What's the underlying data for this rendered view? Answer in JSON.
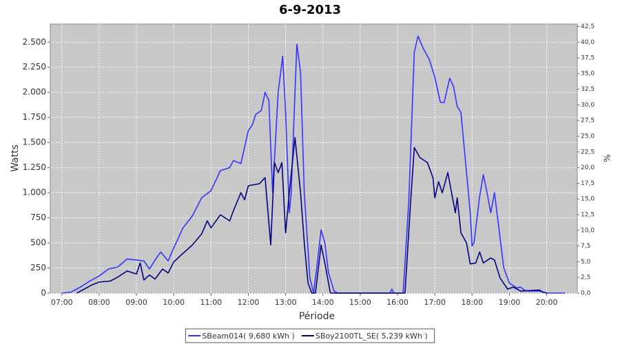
{
  "chart_data": {
    "type": "line",
    "title": "6-9-2013",
    "x_label": "Période",
    "y_label": "Watts",
    "y2_label": "%",
    "xlim": [
      6.69,
      20.82
    ],
    "ylim": [
      0,
      2680
    ],
    "y2lim": [
      0,
      42.88
    ],
    "grid": true,
    "legend": "bottom",
    "xticks": [
      {
        "value": 7,
        "label": "07:00"
      },
      {
        "value": 8,
        "label": "08:00"
      },
      {
        "value": 9,
        "label": "09:00"
      },
      {
        "value": 10,
        "label": "10:00"
      },
      {
        "value": 11,
        "label": "11:00"
      },
      {
        "value": 12,
        "label": "12:00"
      },
      {
        "value": 13,
        "label": "13:00"
      },
      {
        "value": 14,
        "label": "14:00"
      },
      {
        "value": 15,
        "label": "15:00"
      },
      {
        "value": 16,
        "label": "16:00"
      },
      {
        "value": 17,
        "label": "17:00"
      },
      {
        "value": 18,
        "label": "18:00"
      },
      {
        "value": 19,
        "label": "19:00"
      },
      {
        "value": 20,
        "label": "20:00"
      }
    ],
    "yticks": [
      0,
      250,
      500,
      750,
      {
        "value": 1000,
        "label": "1.000"
      },
      {
        "value": 1250,
        "label": "1.250"
      },
      {
        "value": 1500,
        "label": "1.500"
      },
      {
        "value": 1750,
        "label": "1.750"
      },
      {
        "value": 2000,
        "label": "2.000"
      },
      {
        "value": 2250,
        "label": "2.250"
      },
      {
        "value": 2500,
        "label": "2.500"
      }
    ],
    "y2ticks": [
      {
        "value": 0,
        "label": "0,0"
      },
      {
        "value": 2.5,
        "label": "2,5"
      },
      {
        "value": 5,
        "label": "5,0"
      },
      {
        "value": 7.5,
        "label": "7,5"
      },
      {
        "value": 10,
        "label": "10,0"
      },
      {
        "value": 12.5,
        "label": "12,5"
      },
      {
        "value": 15,
        "label": "15,0"
      },
      {
        "value": 17.5,
        "label": "17,5"
      },
      {
        "value": 20,
        "label": "20,0"
      },
      {
        "value": 22.5,
        "label": "22,5"
      },
      {
        "value": 25,
        "label": "25,0"
      },
      {
        "value": 27.5,
        "label": "27,5"
      },
      {
        "value": 30,
        "label": "30,0"
      },
      {
        "value": 32.5,
        "label": "32,5"
      },
      {
        "value": 35,
        "label": "35,0"
      },
      {
        "value": 37.5,
        "label": "37,5"
      },
      {
        "value": 40,
        "label": "40,0"
      },
      {
        "value": 42.5,
        "label": "42,5"
      }
    ],
    "series": [
      {
        "name": "SBeam014( 9,680 kWh )",
        "color": "#3333ff",
        "x": [
          7.0,
          7.25,
          7.5,
          7.75,
          8.0,
          8.25,
          8.5,
          8.75,
          9.0,
          9.2,
          9.35,
          9.5,
          9.65,
          9.85,
          10.0,
          10.25,
          10.5,
          10.75,
          11.0,
          11.25,
          11.5,
          11.6,
          11.8,
          12.0,
          12.1,
          12.2,
          12.35,
          12.45,
          12.55,
          12.65,
          12.8,
          12.92,
          13.0,
          13.1,
          13.15,
          13.3,
          13.4,
          13.5,
          13.65,
          13.75,
          13.85,
          13.95,
          14.05,
          14.15,
          14.3,
          14.4,
          15.8,
          15.85,
          15.9,
          16.15,
          16.3,
          16.45,
          16.55,
          16.7,
          16.85,
          17.0,
          17.15,
          17.25,
          17.4,
          17.5,
          17.6,
          17.7,
          17.8,
          17.95,
          18.0,
          18.05,
          18.2,
          18.3,
          18.4,
          18.5,
          18.6,
          18.7,
          18.85,
          19.0,
          19.2,
          19.3,
          19.4,
          19.5,
          19.8,
          20.0,
          20.5
        ],
        "values": [
          0,
          10,
          60,
          120,
          170,
          240,
          260,
          340,
          330,
          320,
          240,
          330,
          410,
          320,
          450,
          650,
          770,
          950,
          1020,
          1220,
          1250,
          1320,
          1290,
          1620,
          1670,
          1780,
          1820,
          2000,
          1920,
          1000,
          2000,
          2360,
          1800,
          800,
          1000,
          2480,
          2200,
          1000,
          150,
          0,
          300,
          630,
          500,
          200,
          20,
          0,
          0,
          40,
          0,
          0,
          900,
          2400,
          2560,
          2430,
          2330,
          2150,
          1900,
          1900,
          2140,
          2060,
          1860,
          1800,
          1400,
          800,
          470,
          500,
          960,
          1180,
          1000,
          800,
          1000,
          700,
          250,
          100,
          50,
          60,
          30,
          20,
          20,
          0,
          0
        ]
      },
      {
        "name": "SBoy2100TL_SE( 5,239 kWh )",
        "color": "#000080",
        "x": [
          7.4,
          7.6,
          7.8,
          8.0,
          8.3,
          8.5,
          8.75,
          9.0,
          9.1,
          9.2,
          9.35,
          9.5,
          9.7,
          9.85,
          10.0,
          10.2,
          10.5,
          10.75,
          10.9,
          11.0,
          11.25,
          11.5,
          11.6,
          11.8,
          11.9,
          12.0,
          12.3,
          12.45,
          12.55,
          12.6,
          12.7,
          12.8,
          12.9,
          13.0,
          13.1,
          13.25,
          13.4,
          13.5,
          13.6,
          13.7,
          13.8,
          13.95,
          14.05,
          14.15,
          14.2,
          16.2,
          16.35,
          16.45,
          16.6,
          16.8,
          16.95,
          17.0,
          17.1,
          17.2,
          17.35,
          17.45,
          17.55,
          17.6,
          17.7,
          17.85,
          17.95,
          18.1,
          18.2,
          18.3,
          18.5,
          18.6,
          18.75,
          18.95,
          19.1,
          19.3,
          19.8,
          19.9,
          20.0
        ],
        "values": [
          0,
          40,
          80,
          110,
          120,
          160,
          220,
          190,
          300,
          130,
          180,
          140,
          240,
          200,
          310,
          380,
          480,
          590,
          720,
          650,
          780,
          720,
          820,
          1000,
          930,
          1070,
          1090,
          1150,
          700,
          480,
          1300,
          1200,
          1300,
          600,
          1000,
          1550,
          1000,
          500,
          100,
          0,
          0,
          480,
          300,
          100,
          0,
          0,
          900,
          1450,
          1350,
          1300,
          1150,
          950,
          1110,
          1000,
          1200,
          1000,
          800,
          950,
          600,
          500,
          290,
          300,
          410,
          300,
          350,
          330,
          150,
          40,
          60,
          20,
          30,
          10,
          0
        ]
      }
    ]
  }
}
